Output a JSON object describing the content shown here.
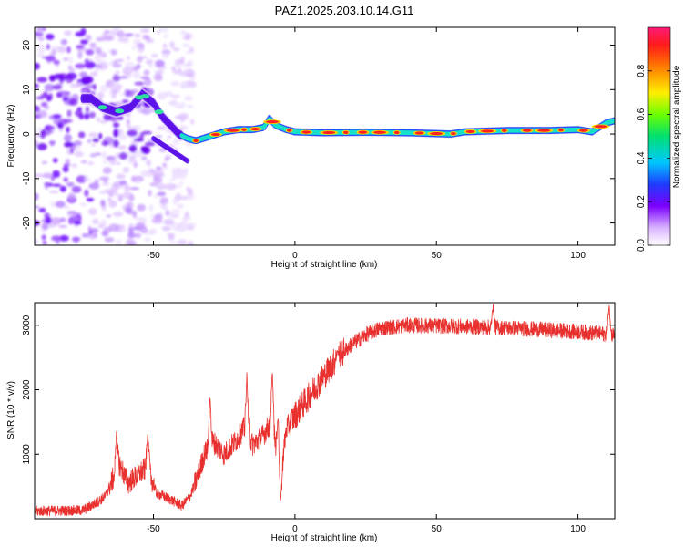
{
  "title": "PAZ1.2025.203.10.14.G11",
  "chart_data": [
    {
      "type": "heatmap",
      "xlabel": "Height of straight line (km)",
      "ylabel": "Frequency (Hz)",
      "xlim": [
        -92,
        113
      ],
      "ylim": [
        -25,
        24
      ],
      "xticks": [
        -50,
        0,
        50,
        100
      ],
      "yticks": [
        -20,
        -10,
        0,
        10,
        20
      ],
      "colorbar": {
        "label": "Normalized spectral amplitude",
        "range": [
          0,
          1
        ],
        "ticks": [
          0.0,
          0.2,
          0.4,
          0.6,
          0.8
        ]
      },
      "ridge": [
        [
          -72,
          8
        ],
        [
          -68,
          6
        ],
        [
          -63,
          5
        ],
        [
          -58,
          6
        ],
        [
          -54,
          9
        ],
        [
          -50,
          7
        ],
        [
          -47,
          4
        ],
        [
          -44,
          2
        ],
        [
          -41,
          0
        ],
        [
          -38,
          -1
        ],
        [
          -35,
          -1.5
        ],
        [
          -30,
          -0.5
        ],
        [
          -25,
          0.5
        ],
        [
          -20,
          1
        ],
        [
          -15,
          1
        ],
        [
          -11,
          1.5
        ],
        [
          -9,
          3.5
        ],
        [
          -7,
          2
        ],
        [
          -3,
          1
        ],
        [
          0,
          0.5
        ],
        [
          10,
          0.3
        ],
        [
          25,
          0.4
        ],
        [
          40,
          0.3
        ],
        [
          55,
          0
        ],
        [
          60,
          0.5
        ],
        [
          75,
          0.8
        ],
        [
          90,
          0.8
        ],
        [
          100,
          1
        ],
        [
          105,
          0.5
        ],
        [
          110,
          2.5
        ],
        [
          113,
          3
        ]
      ]
    },
    {
      "type": "line",
      "xlabel": "Height of straight line (km)",
      "ylabel": "SNR (10 * v/v)",
      "xlim": [
        -92,
        113
      ],
      "ylim": [
        0,
        3350
      ],
      "xticks": [
        -50,
        0,
        50,
        100
      ],
      "yticks": [
        1000,
        2000,
        3000
      ],
      "series": [
        {
          "color": "#e8312e",
          "envelope": [
            [
              -92,
              120
            ],
            [
              -75,
              130
            ],
            [
              -70,
              250
            ],
            [
              -67,
              350
            ],
            [
              -64,
              650
            ],
            [
              -62,
              850
            ],
            [
              -59,
              550
            ],
            [
              -55,
              700
            ],
            [
              -52,
              800
            ],
            [
              -49,
              400
            ],
            [
              -44,
              300
            ],
            [
              -40,
              200
            ],
            [
              -37,
              350
            ],
            [
              -34,
              700
            ],
            [
              -32,
              1000
            ],
            [
              -29,
              1200
            ],
            [
              -25,
              1000
            ],
            [
              -21,
              1200
            ],
            [
              -18,
              1400
            ],
            [
              -15,
              1150
            ],
            [
              -12,
              1250
            ],
            [
              -9,
              1450
            ],
            [
              -7,
              1200
            ],
            [
              -5,
              700
            ],
            [
              -3,
              1400
            ],
            [
              0,
              1600
            ],
            [
              5,
              1900
            ],
            [
              10,
              2200
            ],
            [
              15,
              2500
            ],
            [
              20,
              2700
            ],
            [
              25,
              2850
            ],
            [
              30,
              2950
            ],
            [
              40,
              3000
            ],
            [
              60,
              2980
            ],
            [
              80,
              2950
            ],
            [
              100,
              2900
            ],
            [
              113,
              2850
            ]
          ],
          "spikes": [
            [
              -63,
              1380
            ],
            [
              -52,
              1350
            ],
            [
              -30,
              1900
            ],
            [
              -17,
              2250
            ],
            [
              -8,
              2300
            ],
            [
              -6,
              1600
            ],
            [
              -5,
              300
            ],
            [
              15,
              2600
            ],
            [
              70,
              3300
            ],
            [
              111,
              3320
            ]
          ]
        }
      ]
    }
  ]
}
